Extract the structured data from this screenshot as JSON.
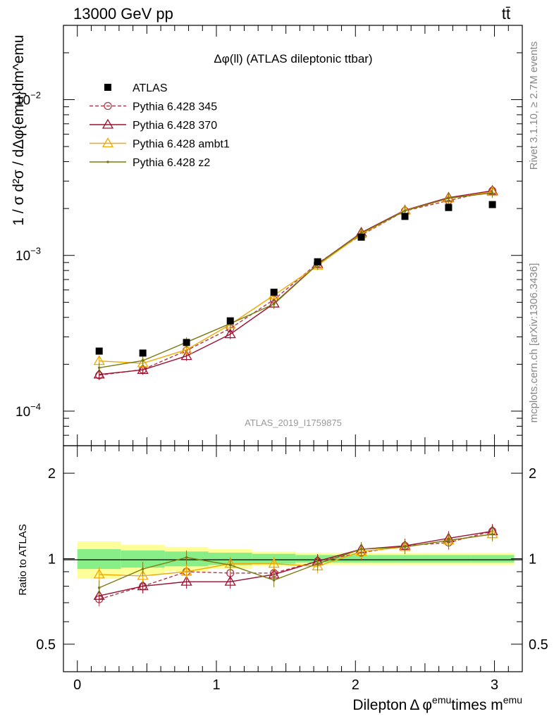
{
  "header": {
    "left": "13000 GeV pp",
    "right": "tt̄"
  },
  "side_labels": {
    "rivet": "Rivet 3.1.10, ≥ 2.7M events",
    "mcplots": "mcplots.cern.ch [arXiv:1306.3436]"
  },
  "chart_data": [
    {
      "type": "line",
      "title": "Δφ(ll) (ATLAS dileptonic ttbar)",
      "watermark": "ATLAS_2019_I1759875",
      "ylabel": "1 / σ  d²σ / dΔφ{emu}dm^emu",
      "yscale": "log",
      "ylim": [
        6e-05,
        0.03
      ],
      "xlim": [
        -0.1,
        3.2
      ],
      "y_ticks": [
        {
          "v": 0.0001,
          "base": "10",
          "exp": "−4"
        },
        {
          "v": 0.001,
          "base": "10",
          "exp": "−3"
        },
        {
          "v": 0.01,
          "base": "10",
          "exp": "−2"
        }
      ],
      "x": [
        0.157,
        0.471,
        0.785,
        1.1,
        1.414,
        1.728,
        2.042,
        2.356,
        2.67,
        2.985
      ],
      "data": {
        "name": "ATLAS",
        "color": "#000000",
        "values": [
          0.000243,
          0.000236,
          0.000276,
          0.00038,
          0.00058,
          0.00091,
          0.00131,
          0.00178,
          0.00203,
          0.00212
        ]
      },
      "series": [
        {
          "name": "Pythia 6.428 345",
          "color": "#b03a48",
          "dash": true,
          "marker": "circle",
          "values": [
            0.00017,
            0.000185,
            0.000245,
            0.00034,
            0.00052,
            0.00089,
            0.00135,
            0.00193,
            0.00225,
            0.0026
          ]
        },
        {
          "name": "Pythia 6.428 370",
          "color": "#9b1030",
          "dash": false,
          "marker": "triangle",
          "values": [
            0.000172,
            0.000184,
            0.000226,
            0.000312,
            0.000491,
            0.00088,
            0.0014,
            0.00195,
            0.00235,
            0.0026
          ]
        },
        {
          "name": "Pythia 6.428 ambt1",
          "color": "#f0a800",
          "dash": false,
          "marker": "triangle",
          "values": [
            0.00021,
            0.000203,
            0.000248,
            0.00036,
            0.000555,
            0.00086,
            0.00137,
            0.00194,
            0.00232,
            0.00256
          ]
        },
        {
          "name": "Pythia 6.428 z2",
          "color": "#7a7a10",
          "dash": false,
          "marker": "dot",
          "values": [
            0.00019,
            0.000211,
            0.000277,
            0.000365,
            0.000487,
            0.000875,
            0.00139,
            0.00193,
            0.00233,
            0.00252
          ]
        }
      ]
    },
    {
      "type": "line",
      "ylabel": "Ratio to ATLAS",
      "xlabel_main": "Dilepton",
      "xlabel_sym": "Δ",
      "xlabel_phi": "φ",
      "xlabel_emu1": "emu",
      "xlabel_mid": "times m",
      "xlabel_emu2": "emu",
      "yscale": "log",
      "ylim": [
        0.4,
        2.5
      ],
      "xlim": [
        -0.1,
        3.2
      ],
      "x_ticks": [
        0,
        1,
        2,
        3
      ],
      "y_ticks": [
        0.5,
        1,
        2
      ],
      "band_edges": [
        0,
        0.314,
        0.628,
        0.942,
        1.257,
        1.571,
        1.885,
        2.199,
        2.513,
        2.827,
        3.142
      ],
      "band_green": [
        0.08,
        0.07,
        0.06,
        0.05,
        0.04,
        0.03,
        0.03,
        0.03,
        0.03,
        0.03
      ],
      "band_yellow": [
        0.15,
        0.12,
        0.1,
        0.08,
        0.06,
        0.05,
        0.05,
        0.05,
        0.05,
        0.05
      ],
      "series": [
        {
          "name": "Pythia 6.428 345",
          "values": [
            0.72,
            0.8,
            0.9,
            0.89,
            0.89,
            0.98,
            1.05,
            1.11,
            1.14,
            1.25
          ]
        },
        {
          "name": "Pythia 6.428 370",
          "values": [
            0.74,
            0.8,
            0.83,
            0.83,
            0.88,
            0.98,
            1.08,
            1.11,
            1.18,
            1.25
          ]
        },
        {
          "name": "Pythia 6.428 ambt1",
          "values": [
            0.88,
            0.87,
            0.9,
            0.96,
            0.96,
            0.94,
            1.06,
            1.1,
            1.16,
            1.22
          ]
        },
        {
          "name": "Pythia 6.428 z2",
          "values": [
            0.79,
            0.92,
            1.01,
            0.95,
            0.84,
            0.96,
            1.08,
            1.1,
            1.16,
            1.22
          ]
        }
      ]
    }
  ]
}
